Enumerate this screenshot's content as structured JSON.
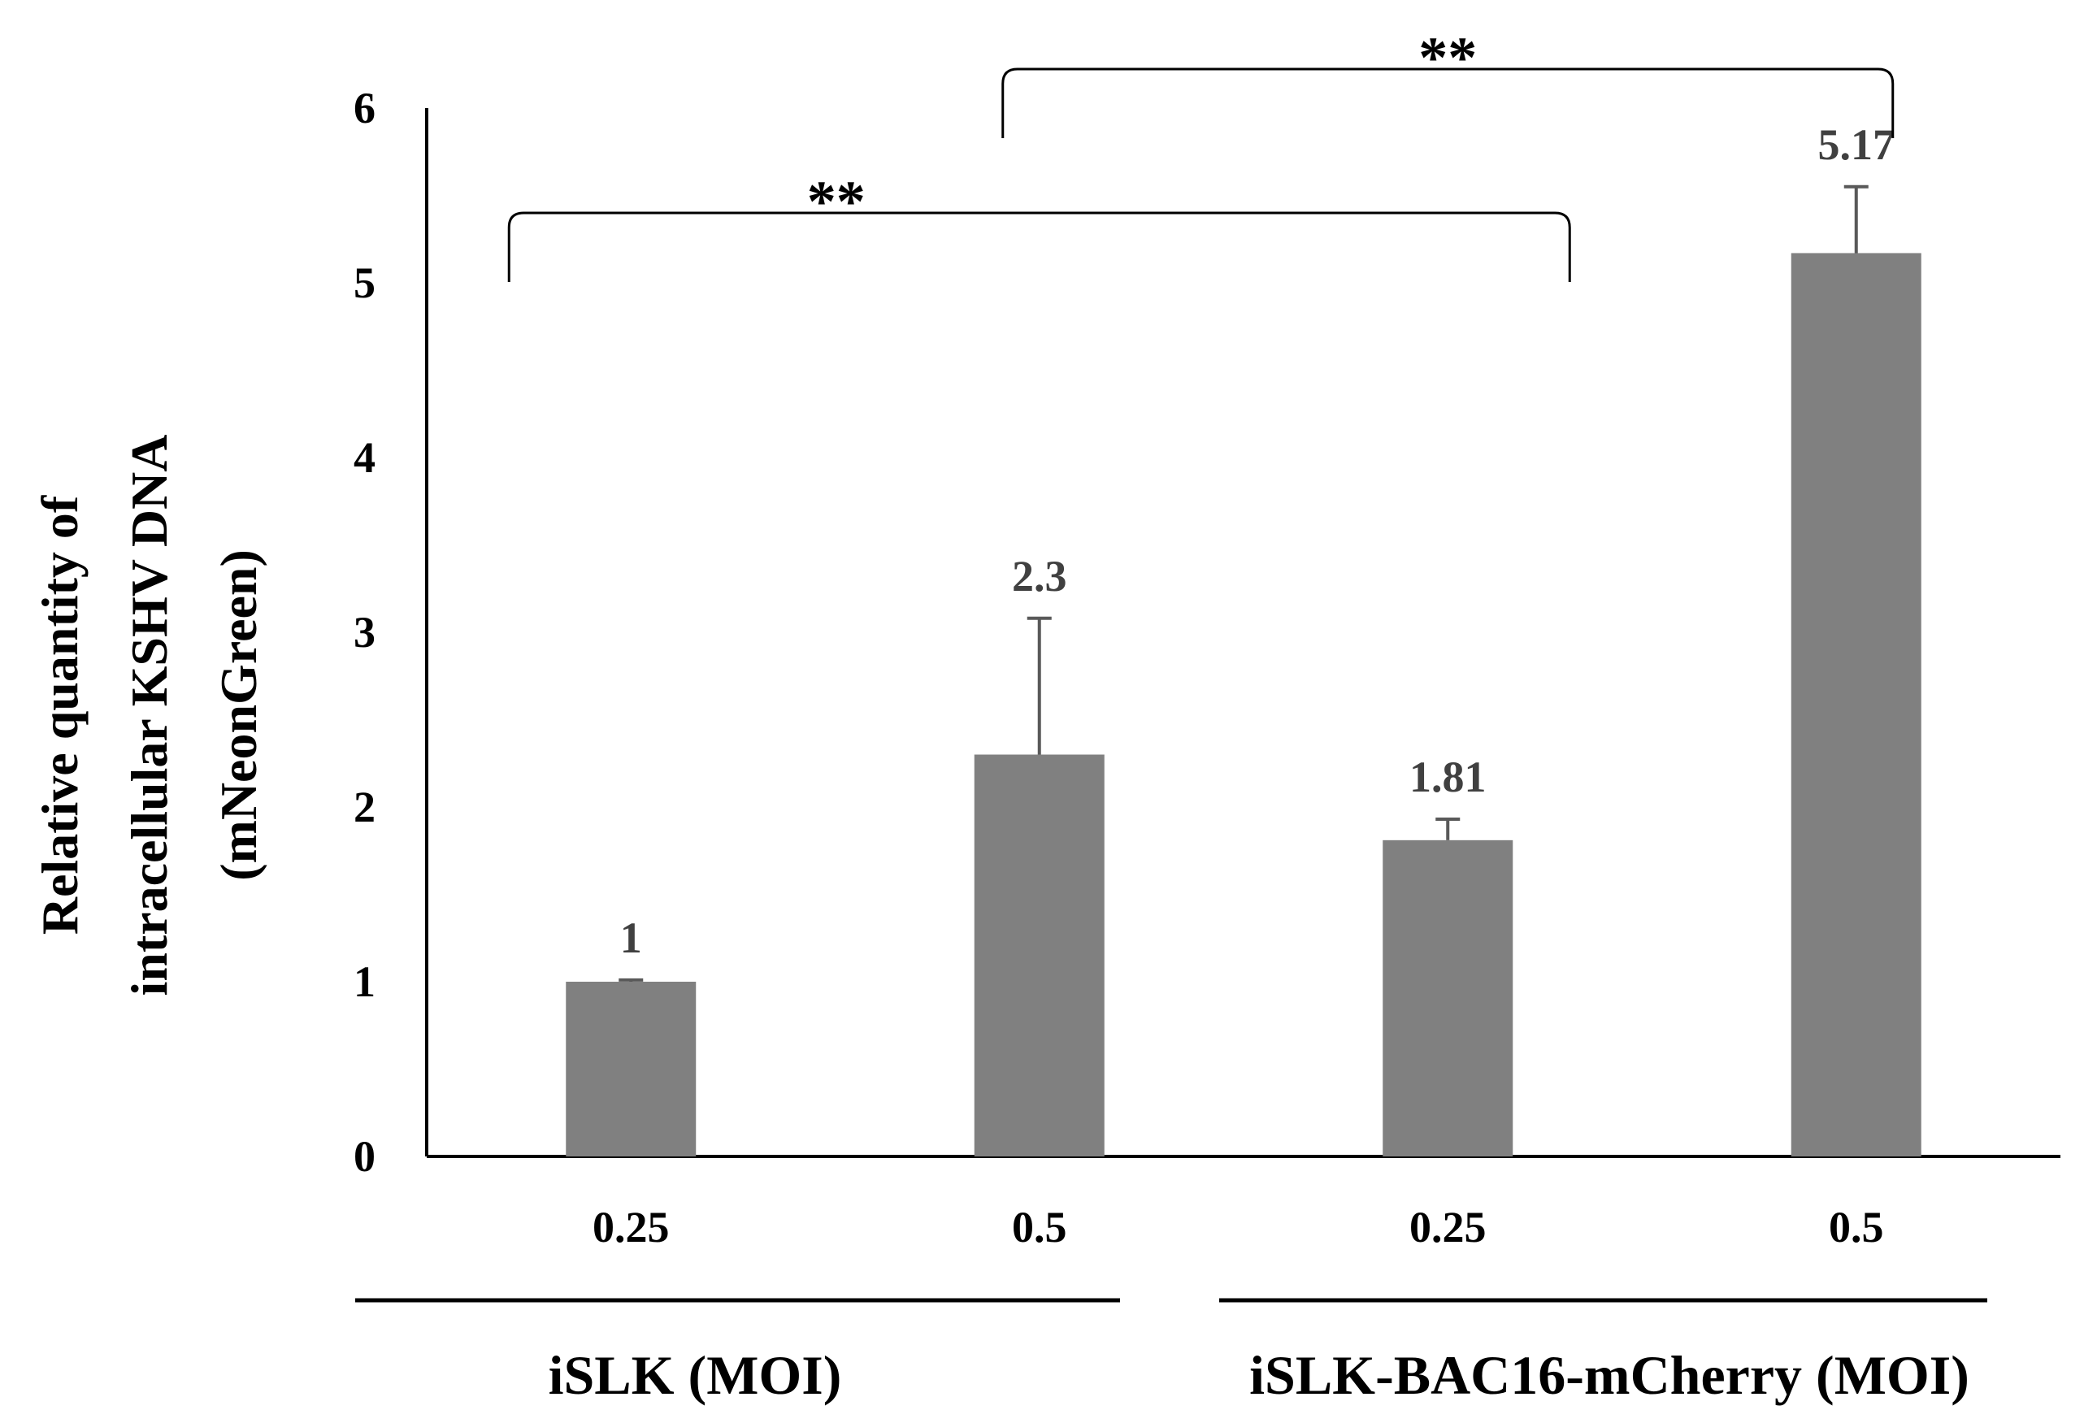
{
  "chart_data": {
    "type": "bar",
    "title": "",
    "ylabel_lines": [
      "Relative quantity  of",
      "intracellular KSHV DNA",
      "(mNeonGreen)"
    ],
    "xlabel": "",
    "ylim": [
      0,
      6
    ],
    "yticks": [
      0,
      1,
      2,
      3,
      4,
      5,
      6
    ],
    "categories": [
      "0.25",
      "0.5",
      "0.25",
      "0.5"
    ],
    "values": [
      1,
      2.3,
      1.81,
      5.17
    ],
    "error_upper": [
      0.01,
      0.78,
      0.12,
      0.38
    ],
    "data_labels": [
      "1",
      "2.3",
      "1.81",
      "5.17"
    ],
    "groups": [
      {
        "name": "iSLK (MOI)",
        "bars": [
          0,
          1
        ]
      },
      {
        "name": "iSLK-BAC16-mCherry (MOI)",
        "bars": [
          2,
          3
        ]
      }
    ],
    "significance": [
      {
        "from": 0,
        "to": 2,
        "label": "**"
      },
      {
        "from": 1,
        "to": 3,
        "label": "**"
      }
    ],
    "bar_color": "#808080",
    "error_color": "#595959",
    "label_color": "#404040",
    "axis_color": "#000000",
    "grid": false
  }
}
